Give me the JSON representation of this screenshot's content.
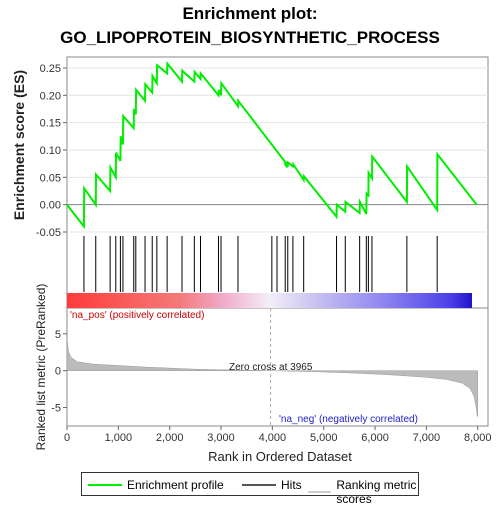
{
  "chart_data": {
    "type": "line",
    "title_line1": "Enrichment plot:",
    "title_line2": "GO_LIPOPROTEIN_BIOSYNTHETIC_PROCESS",
    "ylabel_top": "Enrichment score (ES)",
    "ylabel_bottom": "Ranked list metric (PreRanked)",
    "xlabel": "Rank in Ordered Dataset",
    "es_ylim": [
      -0.05,
      0.27
    ],
    "es_yticks": [
      "0.25",
      "0.20",
      "0.15",
      "0.10",
      "0.05",
      "0.00",
      "-0.05"
    ],
    "metric_ylim": [
      -7.5,
      8.5
    ],
    "metric_yticks": [
      "5",
      "0",
      "-5"
    ],
    "xlim": [
      0,
      8200
    ],
    "xticks": [
      "0",
      "1,000",
      "2,000",
      "3,000",
      "4,000",
      "5,000",
      "6,000",
      "7,000",
      "8,000"
    ],
    "series": [
      {
        "name": "Enrichment profile",
        "color": "#00ee00",
        "x": [
          0,
          330,
          335,
          560,
          565,
          840,
          845,
          950,
          955,
          1040,
          1045,
          1090,
          1095,
          1300,
          1305,
          1340,
          1345,
          1520,
          1525,
          1660,
          1665,
          1750,
          1755,
          1950,
          1955,
          2240,
          2245,
          2480,
          2485,
          2600,
          2605,
          2950,
          2955,
          3000,
          3005,
          3330,
          3335,
          4250,
          4255,
          4280,
          4285,
          4300,
          4305,
          4400,
          4405,
          4610,
          4615,
          5250,
          5255,
          5420,
          5425,
          5700,
          5705,
          5830,
          5835,
          5870,
          5875,
          5940,
          5945,
          6620,
          6625,
          7210,
          7215,
          7980
        ],
        "y": [
          0.0,
          -0.04,
          0.03,
          0.0,
          0.055,
          0.025,
          0.068,
          0.05,
          0.095,
          0.08,
          0.125,
          0.11,
          0.162,
          0.14,
          0.175,
          0.165,
          0.21,
          0.19,
          0.22,
          0.205,
          0.235,
          0.222,
          0.255,
          0.24,
          0.258,
          0.225,
          0.245,
          0.225,
          0.243,
          0.23,
          0.24,
          0.2,
          0.21,
          0.2,
          0.222,
          0.18,
          0.19,
          0.078,
          0.072,
          0.07,
          0.075,
          0.073,
          0.077,
          0.07,
          0.074,
          0.045,
          0.052,
          -0.022,
          0.0,
          -0.013,
          0.005,
          -0.015,
          0.005,
          -0.017,
          0.02,
          0.017,
          0.058,
          0.048,
          0.088,
          0.005,
          0.07,
          -0.01,
          0.092,
          0.0
        ]
      }
    ],
    "hits": [
      330,
      560,
      840,
      950,
      1040,
      1090,
      1300,
      1340,
      1520,
      1660,
      1750,
      1950,
      2240,
      2480,
      2600,
      2950,
      3000,
      3330,
      3990,
      4090,
      4250,
      4300,
      4400,
      4610,
      5250,
      5420,
      5700,
      5830,
      5870,
      5940,
      6620,
      7210
    ],
    "zero_cross": 3965,
    "zero_cross_label": "Zero cross at 3965",
    "pos_label": "'na_pos' (positively correlated)",
    "neg_label": "'na_neg' (negatively correlated)",
    "metric_profile": [
      [
        0,
        4.5
      ],
      [
        30,
        2.6
      ],
      [
        80,
        1.8
      ],
      [
        200,
        1.2
      ],
      [
        500,
        0.9
      ],
      [
        1000,
        0.7
      ],
      [
        1500,
        0.5
      ],
      [
        2000,
        0.35
      ],
      [
        2500,
        0.2
      ],
      [
        3000,
        0.12
      ],
      [
        3500,
        0.05
      ],
      [
        3965,
        0.0
      ],
      [
        4500,
        -0.08
      ],
      [
        5000,
        -0.18
      ],
      [
        5500,
        -0.3
      ],
      [
        6000,
        -0.45
      ],
      [
        6500,
        -0.65
      ],
      [
        7000,
        -0.9
      ],
      [
        7400,
        -1.2
      ],
      [
        7700,
        -1.7
      ],
      [
        7850,
        -2.4
      ],
      [
        7930,
        -3.5
      ],
      [
        7970,
        -5.0
      ],
      [
        7990,
        -6.2
      ],
      [
        8000,
        -6.2
      ]
    ],
    "colors": {
      "curve": "#00ee00",
      "hits": "#000000",
      "pos_label": "#cc0000",
      "neg_label": "#2222cc",
      "metric_fill": "#bbbbbb"
    },
    "legend": {
      "enrichment": "Enrichment profile",
      "hits": "Hits",
      "ranking": "Ranking metric scores"
    }
  }
}
